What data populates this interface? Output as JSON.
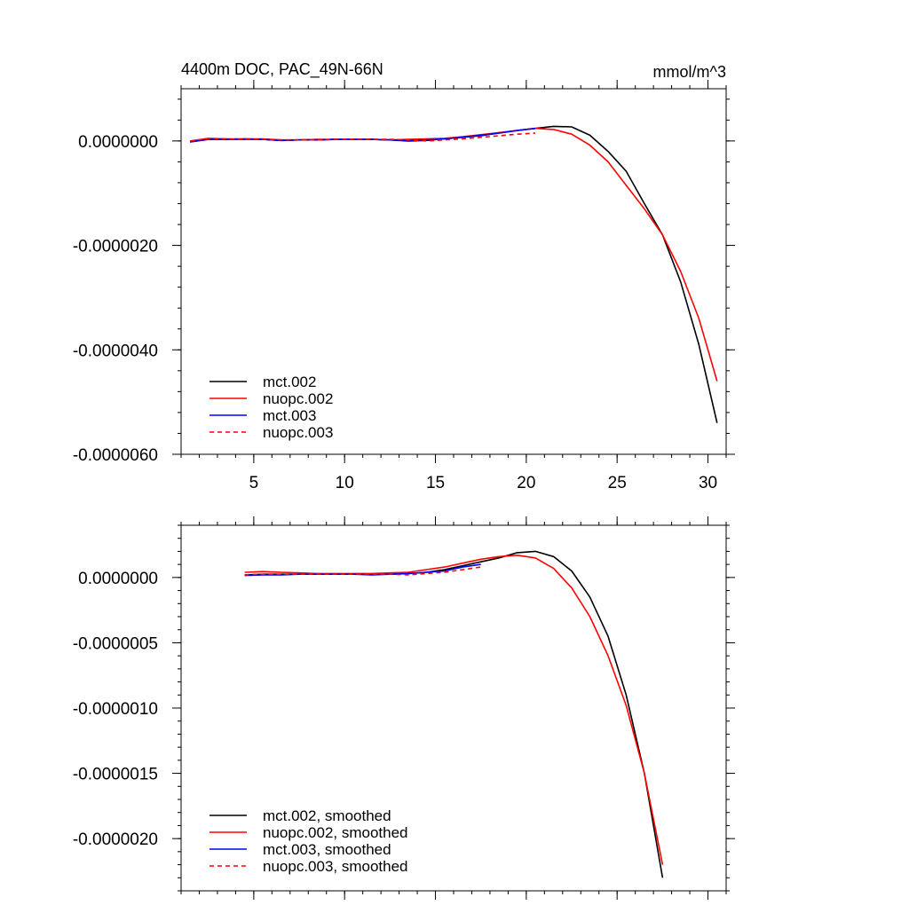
{
  "chart_data": [
    {
      "type": "line",
      "title": "4400m DOC, PAC_49N-66N",
      "units": "mmol/m^3",
      "xlim": [
        1,
        31
      ],
      "ylim": [
        -6e-06,
        1e-06
      ],
      "xticks": [
        5,
        10,
        15,
        20,
        25,
        30
      ],
      "yticks": [
        0.0,
        -2e-06,
        -4e-06,
        -6e-06
      ],
      "yticklabels": [
        "0.0000000",
        "-0.0000020",
        "-0.0000040",
        "-0.0000060"
      ],
      "grid": false,
      "legend_position": "bottom-left",
      "series": [
        {
          "name": "mct.002",
          "color": "#000000",
          "dash": "solid",
          "x": [
            1.5,
            2.5,
            3.5,
            4.5,
            5.5,
            6.5,
            7.5,
            8.5,
            9.5,
            10.5,
            11.5,
            12.5,
            13.5,
            14.5,
            15.5,
            16.5,
            17.5,
            18.5,
            19.5,
            20.5,
            21.5,
            22.5,
            23.5,
            24.5,
            25.5,
            26.5,
            27.5,
            28.5,
            29.5,
            30.5
          ],
          "values": [
            -2e-08,
            3e-08,
            3e-08,
            4e-08,
            3e-08,
            1e-08,
            2e-08,
            2e-08,
            3e-08,
            3e-08,
            3e-08,
            2e-08,
            0.0,
            1e-08,
            4e-08,
            7e-08,
            1e-07,
            1.5e-07,
            2e-07,
            2.4e-07,
            2.8e-07,
            2.7e-07,
            1.1e-07,
            -2e-07,
            -5.8e-07,
            -1.2e-06,
            -1.8e-06,
            -2.7e-06,
            -3.9e-06,
            -5.4e-06
          ]
        },
        {
          "name": "nuopc.002",
          "color": "#ff0000",
          "dash": "solid",
          "x": [
            1.5,
            2.5,
            3.5,
            4.5,
            5.5,
            6.5,
            7.5,
            8.5,
            9.5,
            10.5,
            11.5,
            12.5,
            13.5,
            14.5,
            15.5,
            16.5,
            17.5,
            18.5,
            19.5,
            20.5,
            21.5,
            22.5,
            23.5,
            24.5,
            25.5,
            26.5,
            27.5,
            28.5,
            29.5,
            30.5
          ],
          "values": [
            0.0,
            5e-08,
            4e-08,
            4e-08,
            4e-08,
            2e-08,
            2e-08,
            3e-08,
            3e-08,
            3e-08,
            3e-08,
            2e-08,
            3e-08,
            4e-08,
            5e-08,
            8e-08,
            1.2e-07,
            1.6e-07,
            2e-07,
            2.4e-07,
            2.2e-07,
            1.3e-07,
            -8e-08,
            -4e-07,
            -8.5e-07,
            -1.3e-06,
            -1.8e-06,
            -2.5e-06,
            -3.4e-06,
            -4.6e-06
          ]
        },
        {
          "name": "mct.003",
          "color": "#0000ff",
          "dash": "solid",
          "x": [
            1.5,
            2.5,
            3.5,
            4.5,
            5.5,
            6.5,
            7.5,
            8.5,
            9.5,
            10.5,
            11.5,
            12.5,
            13.5,
            14.5,
            15.5,
            16.5,
            17.5,
            18.5,
            19.5,
            20.5
          ],
          "values": [
            -2e-08,
            3e-08,
            3e-08,
            3e-08,
            3e-08,
            1e-08,
            2e-08,
            2e-08,
            3e-08,
            3e-08,
            3e-08,
            2e-08,
            1e-08,
            2e-08,
            4e-08,
            7e-08,
            1.1e-07,
            1.5e-07,
            2e-07,
            2.4e-07
          ]
        },
        {
          "name": "nuopc.003",
          "color": "#ff0000",
          "dash": "dashed",
          "x": [
            1.5,
            2.5,
            3.5,
            4.5,
            5.5,
            6.5,
            7.5,
            8.5,
            9.5,
            10.5,
            11.5,
            12.5,
            13.5,
            14.5,
            15.5,
            16.5,
            17.5,
            18.5,
            19.5,
            20.5
          ],
          "values": [
            0.0,
            4e-08,
            4e-08,
            3e-08,
            3e-08,
            2e-08,
            2e-08,
            2e-08,
            3e-08,
            3e-08,
            3e-08,
            3e-08,
            2e-08,
            0.0,
            2e-08,
            4e-08,
            7e-08,
            1e-07,
            1.3e-07,
            1.5e-07
          ]
        }
      ]
    },
    {
      "type": "line",
      "title": "",
      "xlim": [
        1,
        31
      ],
      "ylim": [
        -2.4e-06,
        4e-07
      ],
      "xticks": [
        5,
        10,
        15,
        20,
        25,
        30
      ],
      "yticks": [
        0.0,
        -5e-07,
        -1e-06,
        -1.5e-06,
        -2e-06
      ],
      "yticklabels": [
        "0.0000000",
        "-0.0000005",
        "-0.0000010",
        "-0.0000015",
        "-0.0000020"
      ],
      "grid": false,
      "legend_position": "bottom-left",
      "series": [
        {
          "name": "mct.002, smoothed",
          "color": "#000000",
          "dash": "solid",
          "x": [
            4.5,
            5.5,
            6.5,
            7.5,
            8.5,
            9.5,
            10.5,
            11.5,
            12.5,
            13.5,
            14.5,
            15.5,
            16.5,
            17.5,
            18.5,
            19.5,
            20.5,
            21.5,
            22.5,
            23.5,
            24.5,
            25.5,
            26.5,
            27.5
          ],
          "values": [
            2e-08,
            2.5e-08,
            2.5e-08,
            2.5e-08,
            2.5e-08,
            2.5e-08,
            2.5e-08,
            2.5e-08,
            2.5e-08,
            3e-08,
            4e-08,
            6e-08,
            9e-08,
            1.2e-07,
            1.5e-07,
            1.9e-07,
            2e-07,
            1.6e-07,
            5e-08,
            -1.5e-07,
            -4.5e-07,
            -9e-07,
            -1.5e-06,
            -2.3e-06
          ]
        },
        {
          "name": "nuopc.002, smoothed",
          "color": "#ff0000",
          "dash": "solid",
          "x": [
            4.5,
            5.5,
            6.5,
            7.5,
            8.5,
            9.5,
            10.5,
            11.5,
            12.5,
            13.5,
            14.5,
            15.5,
            16.5,
            17.5,
            18.5,
            19.5,
            20.5,
            21.5,
            22.5,
            23.5,
            24.5,
            25.5,
            26.5,
            27.5
          ],
          "values": [
            4e-08,
            4.5e-08,
            4e-08,
            3.5e-08,
            3e-08,
            3e-08,
            3e-08,
            3e-08,
            3.5e-08,
            4e-08,
            6e-08,
            8e-08,
            1.1e-07,
            1.4e-07,
            1.6e-07,
            1.7e-07,
            1.5e-07,
            7e-08,
            -8e-08,
            -3e-07,
            -6e-07,
            -9.8e-07,
            -1.5e-06,
            -2.2e-06
          ]
        },
        {
          "name": "mct.003, smoothed",
          "color": "#0000ff",
          "dash": "solid",
          "x": [
            4.5,
            5.5,
            6.5,
            7.5,
            8.5,
            9.5,
            10.5,
            11.5,
            12.5,
            13.5,
            14.5,
            15.5,
            16.5,
            17.5
          ],
          "values": [
            1.5e-08,
            2e-08,
            2e-08,
            2.5e-08,
            2.5e-08,
            2.5e-08,
            2.5e-08,
            2e-08,
            2.5e-08,
            3e-08,
            4e-08,
            5e-08,
            8e-08,
            1e-07
          ]
        },
        {
          "name": "nuopc.003, smoothed",
          "color": "#ff0000",
          "dash": "dashed",
          "x": [
            4.5,
            5.5,
            6.5,
            7.5,
            8.5,
            9.5,
            10.5,
            11.5,
            12.5,
            13.5,
            14.5,
            15.5,
            16.5,
            17.5
          ],
          "values": [
            2e-08,
            2.5e-08,
            2.5e-08,
            2.5e-08,
            2.5e-08,
            2.5e-08,
            2.5e-08,
            2.5e-08,
            2.5e-08,
            2e-08,
            3e-08,
            4e-08,
            6e-08,
            8e-08
          ]
        }
      ]
    }
  ]
}
